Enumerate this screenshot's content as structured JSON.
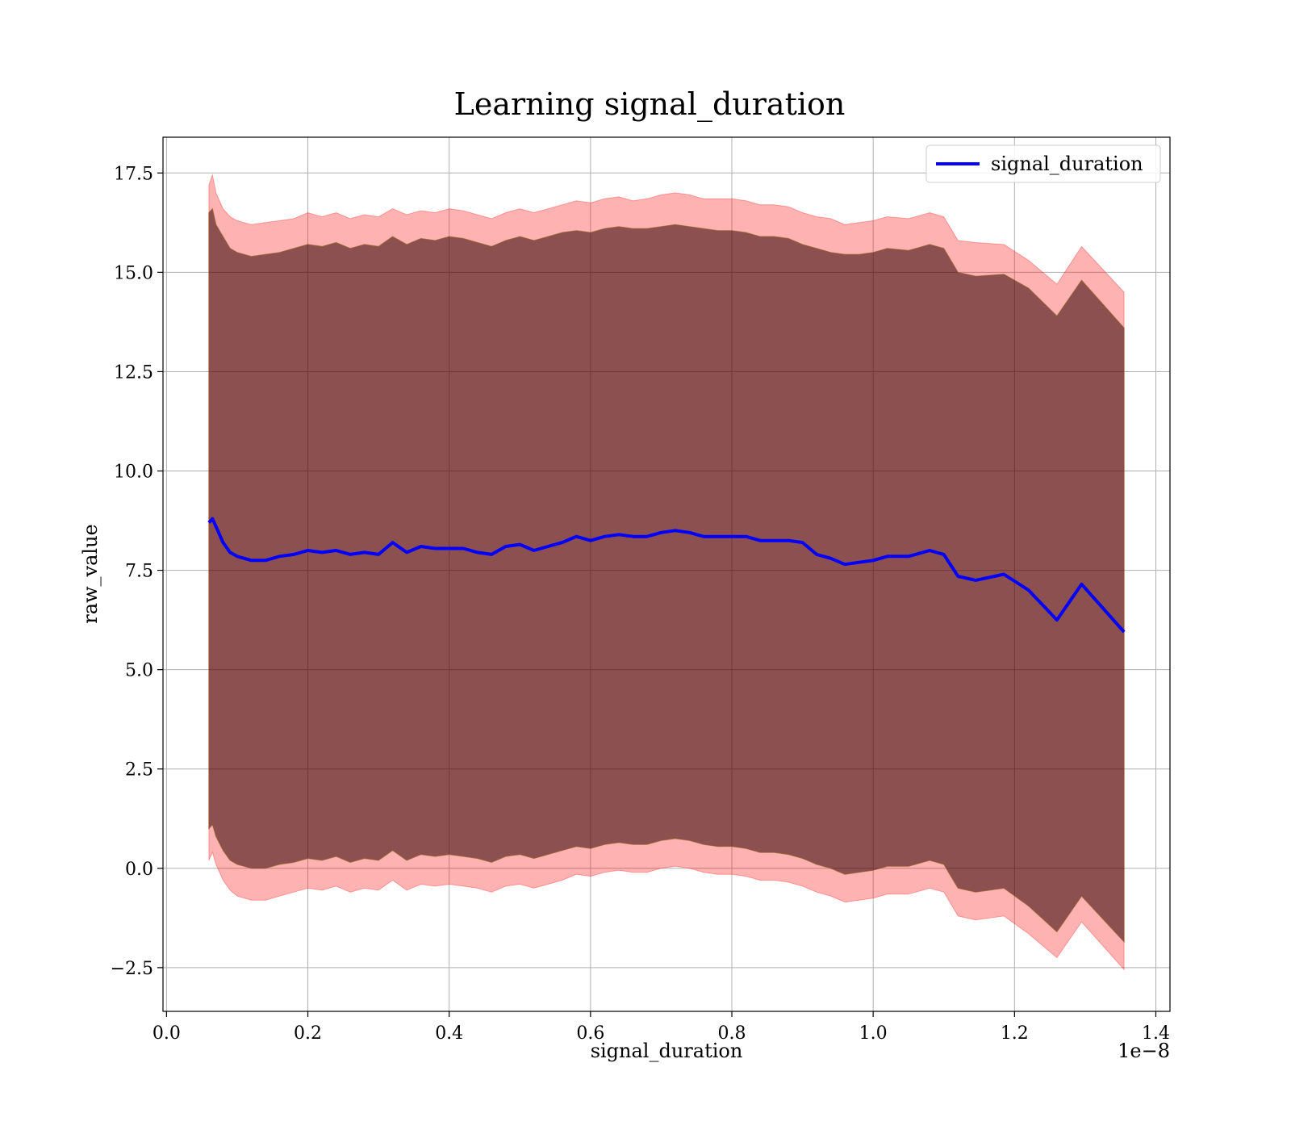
{
  "chart_data": {
    "type": "line",
    "title": "Learning signal_duration",
    "xlabel": "signal_duration",
    "ylabel": "raw_value",
    "x_offset_text": "1e−8",
    "xlim": [
      -0.005,
      1.42
    ],
    "ylim": [
      -3.6,
      18.4
    ],
    "x_ticks": [
      0.0,
      0.2,
      0.4,
      0.6,
      0.8,
      1.0,
      1.2,
      1.4
    ],
    "x_tick_labels": [
      "0.0",
      "0.2",
      "0.4",
      "0.6",
      "0.8",
      "1.0",
      "1.2",
      "1.4"
    ],
    "y_ticks": [
      -2.5,
      0.0,
      2.5,
      5.0,
      7.5,
      10.0,
      12.5,
      15.0,
      17.5
    ],
    "y_tick_labels": [
      "−2.5",
      "0.0",
      "2.5",
      "5.0",
      "7.5",
      "10.0",
      "12.5",
      "15.0",
      "17.5"
    ],
    "grid": true,
    "legend": {
      "position": "top-right",
      "entries": [
        "signal_duration"
      ]
    },
    "colors": {
      "line": "#0000ff",
      "band": "#ff0000",
      "inner_band": "#2f0000"
    },
    "x": [
      0.06,
      0.065,
      0.07,
      0.08,
      0.09,
      0.1,
      0.12,
      0.14,
      0.16,
      0.18,
      0.2,
      0.22,
      0.24,
      0.26,
      0.28,
      0.3,
      0.32,
      0.34,
      0.36,
      0.38,
      0.4,
      0.42,
      0.44,
      0.46,
      0.48,
      0.5,
      0.52,
      0.54,
      0.56,
      0.58,
      0.6,
      0.62,
      0.64,
      0.66,
      0.68,
      0.7,
      0.72,
      0.74,
      0.76,
      0.78,
      0.8,
      0.82,
      0.84,
      0.86,
      0.88,
      0.9,
      0.92,
      0.94,
      0.96,
      0.98,
      1.0,
      1.02,
      1.05,
      1.08,
      1.1,
      1.12,
      1.145,
      1.185,
      1.22,
      1.26,
      1.295,
      1.355
    ],
    "series": [
      {
        "name": "signal_duration",
        "values": [
          8.7,
          8.8,
          8.6,
          8.2,
          7.95,
          7.85,
          7.75,
          7.75,
          7.85,
          7.9,
          8.0,
          7.95,
          8.0,
          7.9,
          7.95,
          7.9,
          8.2,
          7.95,
          8.1,
          8.05,
          8.05,
          8.05,
          7.95,
          7.9,
          8.1,
          8.15,
          8.0,
          8.1,
          8.2,
          8.35,
          8.25,
          8.35,
          8.4,
          8.35,
          8.35,
          8.45,
          8.5,
          8.45,
          8.35,
          8.35,
          8.35,
          8.35,
          8.25,
          8.25,
          8.25,
          8.2,
          7.9,
          7.8,
          7.65,
          7.7,
          7.75,
          7.85,
          7.85,
          8.0,
          7.9,
          7.35,
          7.25,
          7.4,
          7.0,
          6.25,
          7.15,
          5.95
        ],
        "outer_upper": [
          17.2,
          17.45,
          17.0,
          16.6,
          16.4,
          16.3,
          16.2,
          16.25,
          16.3,
          16.35,
          16.5,
          16.4,
          16.5,
          16.35,
          16.45,
          16.4,
          16.6,
          16.45,
          16.55,
          16.5,
          16.6,
          16.55,
          16.45,
          16.35,
          16.5,
          16.6,
          16.5,
          16.6,
          16.7,
          16.8,
          16.75,
          16.85,
          16.9,
          16.8,
          16.85,
          16.95,
          17.0,
          16.95,
          16.85,
          16.85,
          16.85,
          16.8,
          16.7,
          16.7,
          16.65,
          16.5,
          16.4,
          16.35,
          16.2,
          16.25,
          16.3,
          16.4,
          16.35,
          16.5,
          16.4,
          15.8,
          15.75,
          15.7,
          15.3,
          14.7,
          15.65,
          14.5
        ],
        "outer_lower": [
          0.2,
          0.4,
          0.1,
          -0.3,
          -0.55,
          -0.7,
          -0.8,
          -0.8,
          -0.7,
          -0.6,
          -0.5,
          -0.55,
          -0.45,
          -0.6,
          -0.5,
          -0.55,
          -0.3,
          -0.55,
          -0.4,
          -0.45,
          -0.4,
          -0.45,
          -0.5,
          -0.6,
          -0.45,
          -0.4,
          -0.5,
          -0.4,
          -0.3,
          -0.15,
          -0.2,
          -0.1,
          -0.05,
          -0.1,
          -0.1,
          0.0,
          0.05,
          0.0,
          -0.1,
          -0.15,
          -0.15,
          -0.2,
          -0.3,
          -0.3,
          -0.35,
          -0.45,
          -0.6,
          -0.7,
          -0.85,
          -0.8,
          -0.75,
          -0.65,
          -0.65,
          -0.5,
          -0.6,
          -1.2,
          -1.3,
          -1.2,
          -1.65,
          -2.25,
          -1.35,
          -2.55
        ],
        "inner_upper": [
          16.5,
          16.6,
          16.2,
          15.9,
          15.6,
          15.5,
          15.4,
          15.45,
          15.5,
          15.6,
          15.7,
          15.65,
          15.75,
          15.6,
          15.7,
          15.65,
          15.9,
          15.7,
          15.85,
          15.8,
          15.9,
          15.85,
          15.75,
          15.65,
          15.8,
          15.9,
          15.8,
          15.9,
          16.0,
          16.05,
          16.0,
          16.1,
          16.15,
          16.1,
          16.1,
          16.15,
          16.2,
          16.15,
          16.1,
          16.05,
          16.05,
          16.0,
          15.9,
          15.9,
          15.85,
          15.7,
          15.6,
          15.5,
          15.45,
          15.45,
          15.5,
          15.6,
          15.55,
          15.7,
          15.6,
          15.0,
          14.9,
          14.95,
          14.6,
          13.9,
          14.8,
          13.6
        ],
        "inner_lower": [
          1.0,
          1.1,
          0.8,
          0.45,
          0.2,
          0.1,
          0.0,
          0.0,
          0.1,
          0.15,
          0.25,
          0.2,
          0.3,
          0.15,
          0.25,
          0.2,
          0.45,
          0.2,
          0.35,
          0.3,
          0.35,
          0.3,
          0.25,
          0.15,
          0.3,
          0.35,
          0.25,
          0.35,
          0.45,
          0.55,
          0.5,
          0.6,
          0.65,
          0.6,
          0.6,
          0.7,
          0.75,
          0.7,
          0.6,
          0.55,
          0.55,
          0.5,
          0.4,
          0.4,
          0.35,
          0.25,
          0.1,
          0.0,
          -0.15,
          -0.1,
          -0.05,
          0.05,
          0.05,
          0.2,
          0.1,
          -0.5,
          -0.6,
          -0.5,
          -0.95,
          -1.6,
          -0.7,
          -1.85
        ]
      }
    ]
  }
}
